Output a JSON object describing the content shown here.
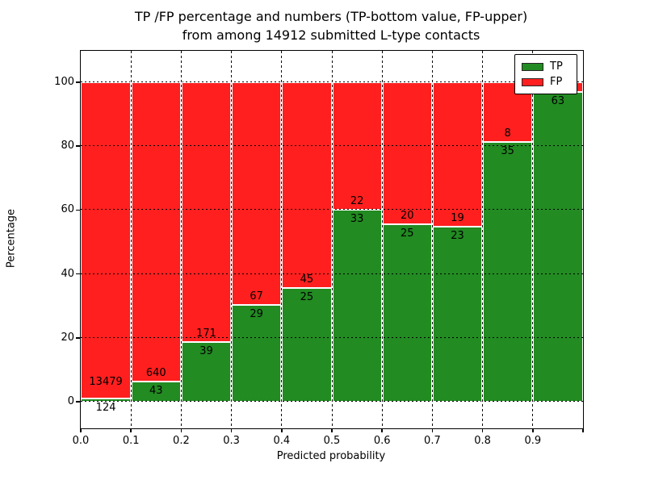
{
  "title": {
    "line1": "TP /FP percentage and numbers (TP-bottom value, FP-upper)",
    "line2": "from among 14912 submitted L-type contacts"
  },
  "axes": {
    "xlabel": "Predicted probability",
    "ylabel": "Percentage",
    "x_tick_labels": [
      "0.0",
      "0.1",
      "0.2",
      "0.3",
      "0.4",
      "0.5",
      "0.6",
      "0.7",
      "0.8",
      "0.9"
    ],
    "y_tick_labels": [
      "0",
      "20",
      "40",
      "60",
      "80",
      "100"
    ]
  },
  "legend": {
    "entries": [
      {
        "label": "TP",
        "color": "#228b22"
      },
      {
        "label": "FP",
        "color": "#ff1f1f"
      }
    ]
  },
  "chart_data": {
    "type": "bar",
    "stacked": true,
    "normalized_to_percent": true,
    "title": "TP /FP percentage and numbers (TP-bottom value, FP-upper) from among 14912 submitted L-type contacts",
    "xlabel": "Predicted probability",
    "ylabel": "Percentage",
    "total_contacts_in_title": 14912,
    "bin_edges": [
      0.0,
      0.1,
      0.2,
      0.3,
      0.4,
      0.5,
      0.6,
      0.7,
      0.8,
      0.9,
      1.0
    ],
    "categories": [
      "0.0-0.1",
      "0.1-0.2",
      "0.2-0.3",
      "0.3-0.4",
      "0.4-0.5",
      "0.5-0.6",
      "0.6-0.7",
      "0.7-0.8",
      "0.8-0.9",
      "0.9-1.0"
    ],
    "series": [
      {
        "name": "TP",
        "color": "#228b22",
        "counts": [
          124,
          43,
          39,
          29,
          25,
          33,
          25,
          23,
          35,
          63
        ]
      },
      {
        "name": "FP",
        "color": "#ff1f1f",
        "counts": [
          13479,
          640,
          171,
          67,
          45,
          22,
          20,
          19,
          8,
          null
        ]
      }
    ],
    "tp_percent": [
      0.91,
      6.3,
      18.6,
      30.2,
      35.7,
      60.0,
      55.6,
      54.8,
      81.4,
      96.9
    ],
    "bar_total_percent": 100,
    "y_ticks": [
      0,
      20,
      40,
      60,
      80,
      100
    ],
    "ylim_approx": [
      -8.3,
      109.8
    ],
    "xlim": [
      0.0,
      1.0
    ],
    "grid": true,
    "grid_style": "dotted",
    "legend_position": "upper right",
    "label_note": "FP count printed above TP/FP boundary, TP count printed below it; FP count of last bin hidden behind legend"
  }
}
